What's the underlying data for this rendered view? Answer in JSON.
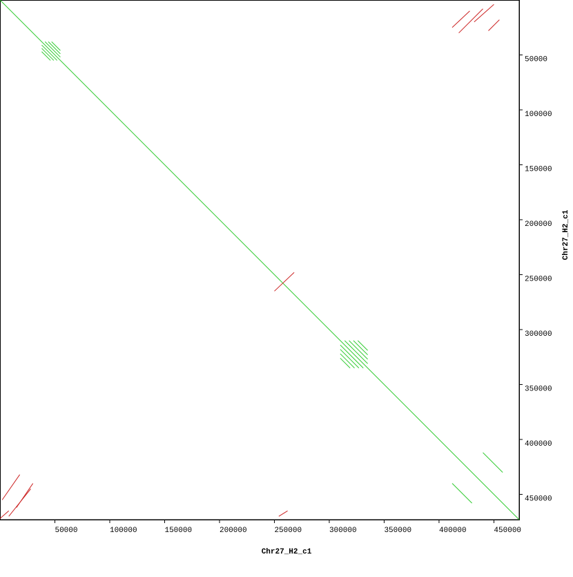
{
  "chart_data": {
    "type": "dotplot",
    "x_label": "Chr27_H2_c1",
    "y_label": "Chr27_H2_c1",
    "xlim": [
      0,
      473000
    ],
    "ylim": [
      0,
      473000
    ],
    "xticks": [
      50000,
      100000,
      150000,
      200000,
      250000,
      300000,
      350000,
      400000,
      450000
    ],
    "yticks": [
      50000,
      100000,
      150000,
      200000,
      250000,
      300000,
      350000,
      400000,
      450000
    ],
    "series": [
      {
        "color": "#33cc33",
        "segments": [
          [
            0,
            0,
            473000,
            473000
          ],
          [
            38000,
            41000,
            52000,
            55000
          ],
          [
            38000,
            44000,
            49000,
            55000
          ],
          [
            38000,
            47000,
            46000,
            55000
          ],
          [
            41000,
            38000,
            55000,
            52000
          ],
          [
            44000,
            38000,
            55000,
            49000
          ],
          [
            47000,
            38000,
            55000,
            46000
          ],
          [
            310000,
            314000,
            331000,
            335000
          ],
          [
            310000,
            318000,
            327000,
            335000
          ],
          [
            310000,
            322000,
            323000,
            335000
          ],
          [
            310000,
            326000,
            319000,
            335000
          ],
          [
            314000,
            310000,
            335000,
            331000
          ],
          [
            318000,
            310000,
            335000,
            327000
          ],
          [
            322000,
            310000,
            335000,
            323000
          ],
          [
            326000,
            310000,
            335000,
            319000
          ],
          [
            440000,
            412000,
            458000,
            430000
          ],
          [
            412000,
            440000,
            430000,
            458000
          ]
        ]
      },
      {
        "color": "#cc2222",
        "segments": [
          [
            412000,
            25000,
            428000,
            10000
          ],
          [
            418000,
            30000,
            440000,
            8000
          ],
          [
            432000,
            20000,
            450000,
            4000
          ],
          [
            445000,
            28000,
            455000,
            18000
          ],
          [
            2000,
            455000,
            18000,
            432000
          ],
          [
            8000,
            470000,
            28000,
            445000
          ],
          [
            15000,
            462000,
            30000,
            440000
          ],
          [
            0,
            472000,
            8000,
            465000
          ],
          [
            250000,
            265000,
            268000,
            248000
          ],
          [
            254000,
            470000,
            262000,
            465000
          ]
        ]
      }
    ]
  }
}
